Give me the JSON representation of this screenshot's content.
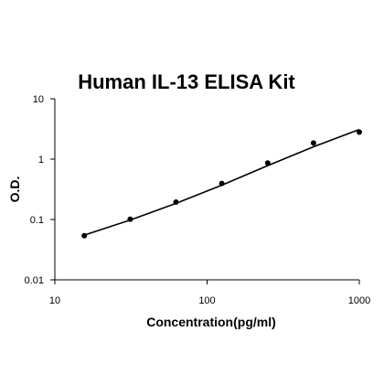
{
  "chart_data": {
    "type": "scatter",
    "title": "Human IL-13 ELISA Kit",
    "xlabel": "Concentration(pg/ml)",
    "ylabel": "O.D.",
    "x_scale": "log",
    "y_scale": "log",
    "xlim": [
      10,
      1000
    ],
    "ylim": [
      0.01,
      10
    ],
    "x_ticks": [
      "10",
      "100",
      "1000"
    ],
    "y_ticks": [
      "0.01",
      "0.1",
      "1",
      "10"
    ],
    "grid": false,
    "legend": "none",
    "series": [
      {
        "x": [
          15.6,
          31.25,
          62.5,
          125,
          250,
          500,
          1000
        ],
        "y": [
          0.054,
          0.101,
          0.194,
          0.395,
          0.86,
          1.85,
          2.8
        ]
      }
    ],
    "fit_line": {
      "x": [
        15.6,
        31.25,
        62.5,
        125,
        250,
        500,
        1000
      ],
      "y": [
        0.055,
        0.098,
        0.185,
        0.37,
        0.78,
        1.6,
        3.1
      ]
    },
    "colors": {
      "axis": "#000000",
      "marker": "#000000",
      "line": "#000000"
    }
  }
}
